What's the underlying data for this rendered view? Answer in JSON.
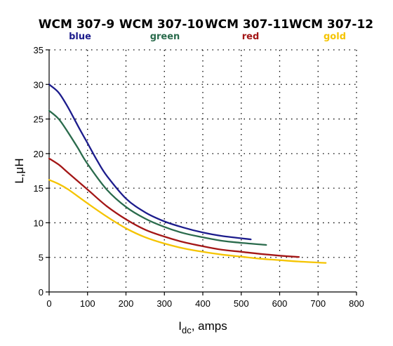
{
  "chart_data": {
    "type": "line",
    "xlabel": "I",
    "xlabel_sub": "dc",
    "xlabel_rest": ", amps",
    "ylabel": "L,μH",
    "xlim": [
      0,
      800
    ],
    "ylim": [
      0,
      35
    ],
    "xticks": [
      0,
      100,
      200,
      300,
      400,
      500,
      600,
      700,
      800
    ],
    "yticks": [
      0,
      5,
      10,
      15,
      20,
      25,
      30,
      35
    ],
    "grid": "dotted",
    "legend_position": "top",
    "series": [
      {
        "name": "WCM 307-9",
        "color_label": "blue",
        "color": "#1c1c8c",
        "x": [
          0,
          25,
          50,
          75,
          100,
          125,
          150,
          200,
          250,
          300,
          350,
          400,
          450,
          525
        ],
        "y": [
          30,
          28.8,
          26.6,
          24.0,
          21.5,
          19.0,
          16.8,
          13.5,
          11.5,
          10.2,
          9.3,
          8.6,
          8.1,
          7.6
        ]
      },
      {
        "name": "WCM 307-10",
        "color_label": "green",
        "color": "#2a6b4c",
        "x": [
          0,
          25,
          50,
          75,
          100,
          150,
          200,
          250,
          300,
          350,
          400,
          450,
          500,
          565
        ],
        "y": [
          26.2,
          25.0,
          23.0,
          20.8,
          18.5,
          14.8,
          12.3,
          10.6,
          9.4,
          8.5,
          7.9,
          7.4,
          7.1,
          6.8
        ]
      },
      {
        "name": "WCM 307-11",
        "color_label": "red",
        "color": "#a31616",
        "x": [
          0,
          25,
          50,
          100,
          150,
          200,
          250,
          300,
          350,
          400,
          450,
          500,
          550,
          600,
          650
        ],
        "y": [
          19.3,
          18.4,
          17.2,
          14.8,
          12.4,
          10.5,
          9.0,
          8.0,
          7.2,
          6.6,
          6.1,
          5.8,
          5.5,
          5.25,
          5.05
        ]
      },
      {
        "name": "WCM 307-12",
        "color_label": "gold",
        "color": "#f5c400",
        "x": [
          0,
          25,
          50,
          100,
          150,
          200,
          250,
          300,
          350,
          400,
          450,
          500,
          550,
          600,
          650,
          720
        ],
        "y": [
          16.2,
          15.6,
          14.8,
          12.8,
          10.9,
          9.2,
          7.9,
          7.0,
          6.3,
          5.8,
          5.4,
          5.1,
          4.8,
          4.6,
          4.4,
          4.2
        ]
      }
    ]
  }
}
